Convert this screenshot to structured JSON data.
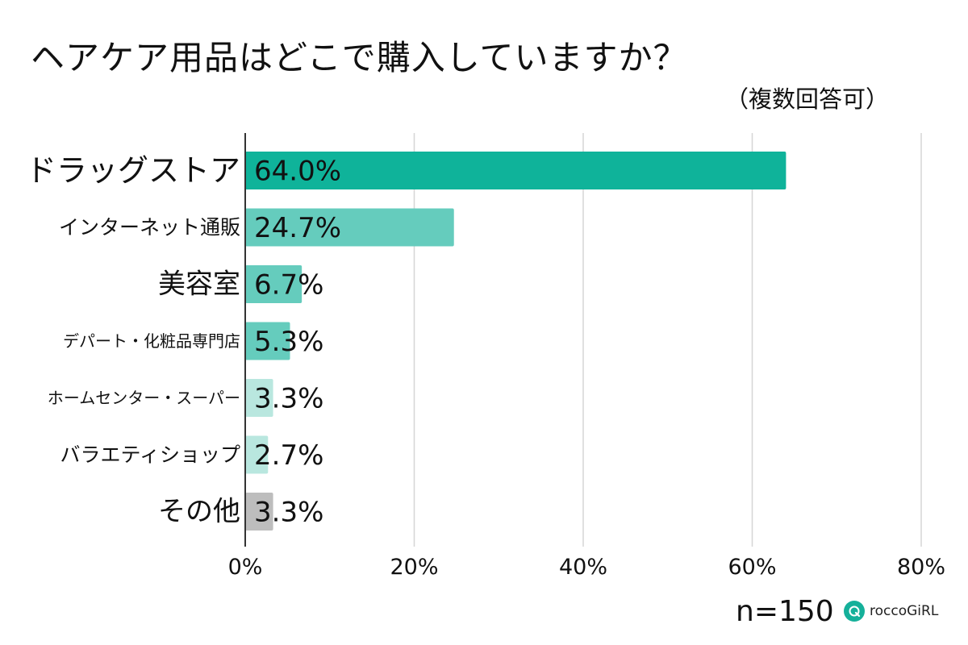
{
  "title": "ヘアケア用品はどこで購入していますか？",
  "subtitle": "（複数回答可）",
  "sample_size": "n=150",
  "brand": "roccoGiRL",
  "chart_data": {
    "type": "bar",
    "orientation": "horizontal",
    "categories": [
      "ドラッグストア",
      "インターネット通販",
      "美容室",
      "デパート・化粧品専門店",
      "ホームセンター・スーパー",
      "バラエティショップ",
      "その他"
    ],
    "values": [
      64.0,
      24.7,
      6.7,
      5.3,
      3.3,
      2.7,
      3.3
    ],
    "value_labels": [
      "64.0%",
      "24.7%",
      "6.7%",
      "5.3%",
      "3.3%",
      "2.7%",
      "3.3%"
    ],
    "bar_colors": [
      "#0fb39a",
      "#65ccbd",
      "#65ccbd",
      "#65ccbd",
      "#b9e7df",
      "#b9e7df",
      "#bdbdbd"
    ],
    "category_font_sizes": [
      38,
      25,
      34,
      20,
      20,
      25,
      34
    ],
    "xlim": [
      0,
      80
    ],
    "xticks": [
      0,
      20,
      40,
      60,
      80
    ],
    "xtick_labels": [
      "0%",
      "20%",
      "40%",
      "60%",
      "80%"
    ],
    "grid": true
  }
}
